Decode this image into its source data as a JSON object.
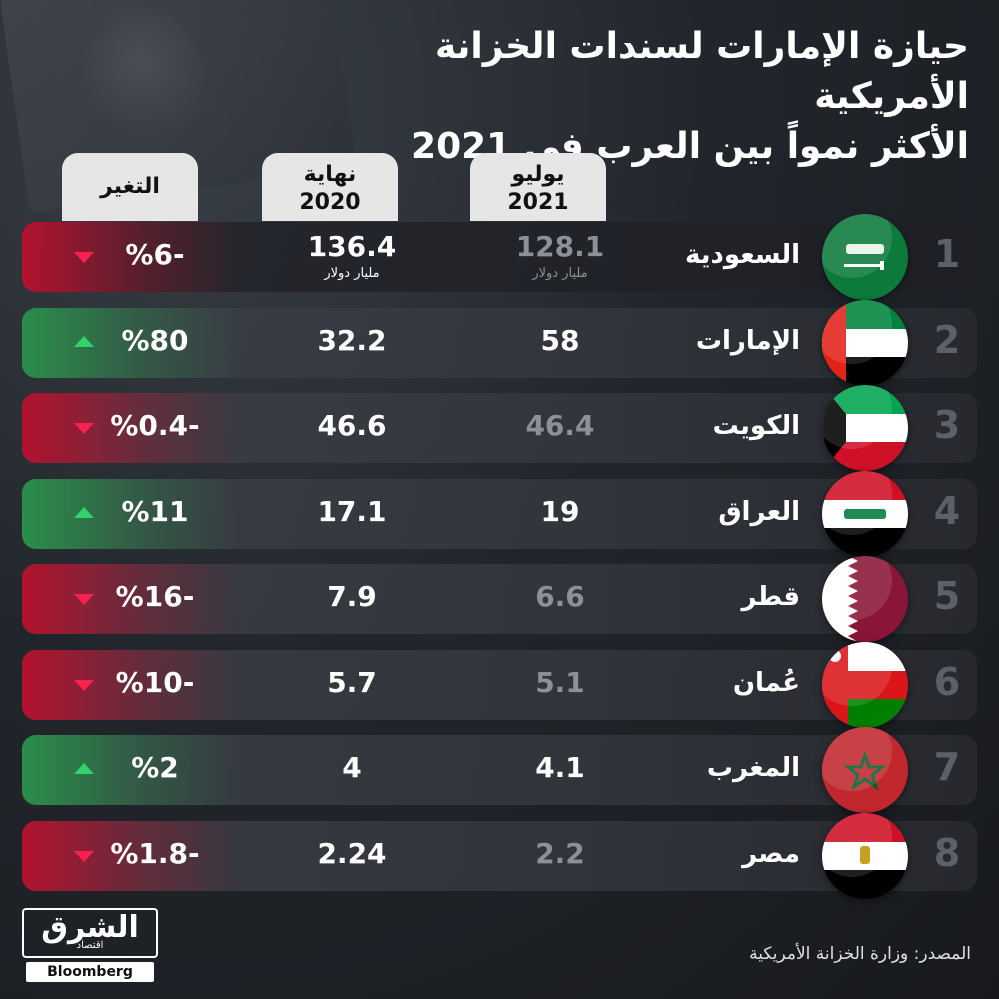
{
  "title_line1": "حيازة الإمارات لسندات الخزانة الأمريكية",
  "title_line2": "الأكثر نمواً بين العرب في 2021",
  "headers": {
    "july_l1": "يوليو",
    "july_l2": "2021",
    "end_l1": "نهاية",
    "end_l2": "2020",
    "change": "التغير"
  },
  "unit_label": "مليار دولار",
  "chart_data": {
    "type": "table",
    "title": "حيازة الإمارات لسندات الخزانة الأمريكية الأكثر نمواً بين العرب في 2021",
    "columns": [
      "يوليو 2021",
      "نهاية 2020",
      "التغير"
    ],
    "rows": [
      {
        "rank": "1",
        "country": "السعودية",
        "july_2021": "128.1",
        "end_2020": "136.4",
        "change": "%6-",
        "direction": "down",
        "flag": "saudi"
      },
      {
        "rank": "2",
        "country": "الإمارات",
        "july_2021": "58",
        "end_2020": "32.2",
        "change": "%80",
        "direction": "up",
        "flag": "uae"
      },
      {
        "rank": "3",
        "country": "الكويت",
        "july_2021": "46.4",
        "end_2020": "46.6",
        "change": "%0.4-",
        "direction": "down",
        "flag": "kuwait"
      },
      {
        "rank": "4",
        "country": "العراق",
        "july_2021": "19",
        "end_2020": "17.1",
        "change": "%11",
        "direction": "up",
        "flag": "iraq"
      },
      {
        "rank": "5",
        "country": "قطر",
        "july_2021": "6.6",
        "end_2020": "7.9",
        "change": "%16-",
        "direction": "down",
        "flag": "qatar"
      },
      {
        "rank": "6",
        "country": "عُمان",
        "july_2021": "5.1",
        "end_2020": "5.7",
        "change": "%10-",
        "direction": "down",
        "flag": "oman"
      },
      {
        "rank": "7",
        "country": "المغرب",
        "july_2021": "4.1",
        "end_2020": "4",
        "change": "%2",
        "direction": "up",
        "flag": "morocco"
      },
      {
        "rank": "8",
        "country": "مصر",
        "july_2021": "2.2",
        "end_2020": "2.24",
        "change": "%1.8-",
        "direction": "down",
        "flag": "egypt"
      }
    ]
  },
  "colors": {
    "up": "#2fd36a",
    "down": "#ff1f4f"
  },
  "logo": {
    "arabic": "الشرق",
    "sub": "اقتصاد",
    "bloomberg": "Bloomberg"
  },
  "source": "المصدر: وزارة الخزانة الأمريكية"
}
